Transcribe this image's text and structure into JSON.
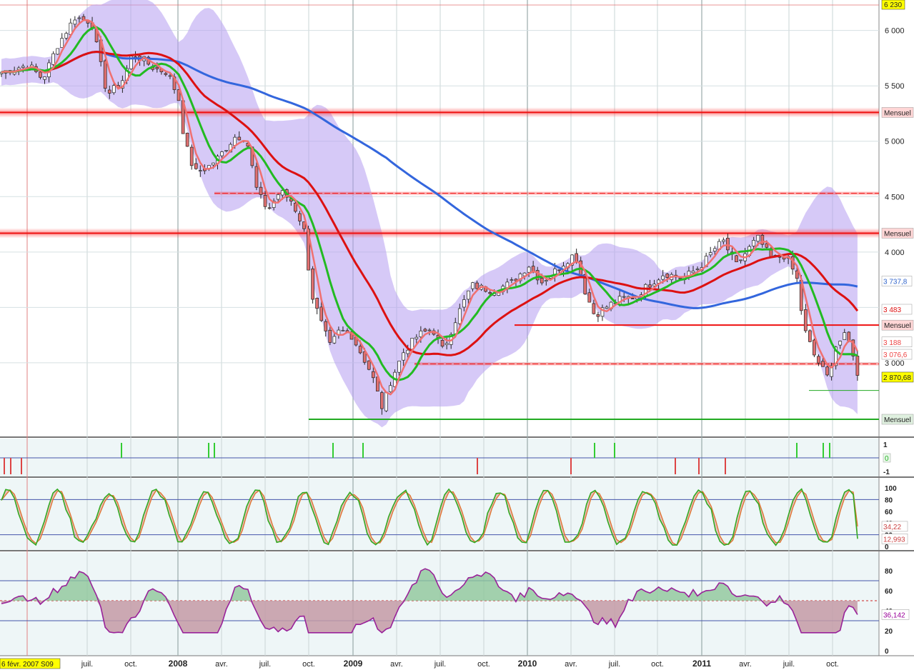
{
  "chart_data": [
    {
      "type": "candlestick",
      "title": "",
      "x_axis_labels": [
        "juil.",
        "oct.",
        "2008",
        "avr.",
        "juil.",
        "oct.",
        "2009",
        "avr.",
        "juil.",
        "oct.",
        "2010",
        "avr.",
        "juil.",
        "oct.",
        "2011",
        "avr.",
        "juil.",
        "oct."
      ],
      "y_ticks": [
        3000,
        3500,
        4000,
        4500,
        5000,
        5500,
        6000
      ],
      "y_tick_labels": [
        "3 000",
        "3 500",
        "4 000",
        "4 500",
        "5 000",
        "5 500",
        "6 000"
      ],
      "ylim": [
        2650,
        6230
      ],
      "top_label": "6 230",
      "start_label": "6 févr. 2007 S09",
      "close": {
        "value": 2870.68,
        "label": "2 870,68",
        "color": "#ffff00"
      },
      "horizontal_levels": [
        {
          "value": 5260,
          "label": "Mensuel",
          "color": "#ee1111",
          "style": "thick"
        },
        {
          "value": 4530,
          "label": "",
          "color": "#ee1111",
          "style": "dashed"
        },
        {
          "value": 4170,
          "label": "Mensuel",
          "color": "#ee1111",
          "style": "thick"
        },
        {
          "value": 3340,
          "label": "Mensuel",
          "color": "#ee1111",
          "style": "solid"
        },
        {
          "value": 2990,
          "label": "",
          "color": "#ee1111",
          "style": "dashed"
        },
        {
          "value": 2750,
          "label": "",
          "color": "#22aa22",
          "style": "thin"
        },
        {
          "value": 2490,
          "label": "Mensuel",
          "color": "#22aa22",
          "style": "solid"
        }
      ],
      "value_tags": [
        {
          "value": 3737.8,
          "label": "3 737,8",
          "color": "#3366cc"
        },
        {
          "value": 3483,
          "label": "3 483",
          "color": "#dd1111"
        },
        {
          "value": 3188,
          "label": "3 188",
          "color": "#ee4444"
        },
        {
          "value": 3076.6,
          "label": "3 076,6",
          "color": "#ee4444"
        }
      ],
      "colors": {
        "ma_long": "#3366dd",
        "ma_mid": "#dd1111",
        "ma_fast": "#f07070",
        "ma_signal": "#22bb22",
        "band": "#b49cf0",
        "up": "#ffffff",
        "down": "#e07070"
      }
    },
    {
      "type": "signal",
      "y_tick_labels": [
        "1",
        "0",
        "-1"
      ],
      "zero_label": "0"
    },
    {
      "type": "line",
      "name": "stochastic",
      "y_tick_labels": [
        "100",
        "80",
        "60",
        "40",
        "20",
        "0"
      ],
      "ylim": [
        0,
        100
      ],
      "levels": [
        80,
        20
      ],
      "value_tags": [
        {
          "value": 34.22,
          "label": "34,22",
          "color": "#cc4444"
        },
        {
          "value": 12.993,
          "label": "12,993",
          "color": "#cc4444"
        }
      ]
    },
    {
      "type": "area",
      "name": "rsi",
      "y_tick_labels": [
        "80",
        "60",
        "40",
        "20",
        "0"
      ],
      "ylim": [
        0,
        100
      ],
      "levels": [
        70,
        50,
        30
      ],
      "value_tags": [
        {
          "value": 36.142,
          "label": "36,142",
          "color": "#990099"
        }
      ]
    }
  ]
}
